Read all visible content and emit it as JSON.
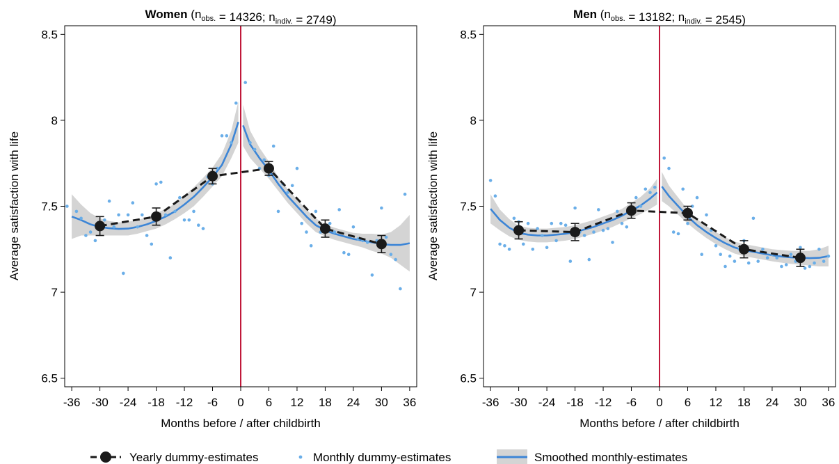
{
  "colors": {
    "yearly": "#1a1a1a",
    "monthly_dots": "#6aaee8",
    "smooth_line": "#3c85d6",
    "ci_band": "#d4d4d4",
    "vline": "#c0183a"
  },
  "legend": {
    "yearly_label": "Yearly dummy-estimates",
    "monthly_label": "Monthly dummy-estimates",
    "smooth_label": "Smoothed monthly-estimates"
  },
  "chart_data": [
    {
      "type": "line",
      "title": "Women",
      "subtitle_parts": [
        {
          "text": " (n",
          "sub": false
        },
        {
          "text": "obs.",
          "sub": true
        },
        {
          "text": " = 14326; n",
          "sub": false
        },
        {
          "text": "indiv.",
          "sub": true
        },
        {
          "text": " = 2749)",
          "sub": false
        }
      ],
      "xlabel": "Months before / after childbirth",
      "ylabel": "Average satisfaction with life",
      "xlim": [
        -37.5,
        37.5
      ],
      "ylim": [
        6.45,
        8.55
      ],
      "xticks": [
        -36,
        -30,
        -24,
        -18,
        -12,
        -6,
        0,
        6,
        12,
        18,
        24,
        30,
        36
      ],
      "xtick_labels": [
        "-36",
        "-30",
        "-24",
        "-18",
        "-12",
        "-6",
        "0",
        "6",
        "12",
        "18",
        "24",
        "30",
        "36"
      ],
      "yticks": [
        6.5,
        7,
        7.5,
        8,
        8.5
      ],
      "ytick_labels": [
        "6.5",
        "7",
        "7.5",
        "8",
        "8.5"
      ],
      "vline_x": 0,
      "yearly": {
        "name": "Yearly dummy-estimates",
        "x": [
          -30,
          -18,
          -6,
          6,
          18,
          30
        ],
        "y": [
          7.385,
          7.44,
          7.675,
          7.72,
          7.37,
          7.28
        ],
        "ci_low": [
          7.33,
          7.39,
          7.63,
          7.68,
          7.32,
          7.23
        ],
        "ci_high": [
          7.44,
          7.49,
          7.72,
          7.76,
          7.42,
          7.33
        ]
      },
      "monthly": {
        "name": "Monthly dummy-estimates",
        "x": [
          -37,
          -35,
          -34,
          -33,
          -32,
          -31,
          -30,
          -29,
          -28,
          -27,
          -26,
          -25,
          -24,
          -23,
          -22,
          -21,
          -20,
          -19,
          -18,
          -17,
          -16,
          -15,
          -14,
          -13,
          -12,
          -11,
          -10,
          -9,
          -8,
          -7,
          -6,
          -5,
          -4,
          -3,
          -2,
          -1,
          1,
          2,
          3,
          4,
          5,
          6,
          7,
          8,
          9,
          10,
          11,
          12,
          13,
          14,
          15,
          16,
          17,
          18,
          19,
          20,
          21,
          22,
          23,
          24,
          25,
          26,
          27,
          28,
          29,
          30,
          31,
          32,
          33,
          34,
          35
        ],
        "y": [
          7.5,
          7.47,
          7.43,
          7.33,
          7.35,
          7.3,
          7.4,
          7.42,
          7.53,
          7.38,
          7.45,
          7.11,
          7.45,
          7.52,
          7.38,
          7.45,
          7.33,
          7.28,
          7.63,
          7.64,
          7.45,
          7.2,
          7.47,
          7.55,
          7.42,
          7.42,
          7.47,
          7.39,
          7.37,
          7.67,
          7.63,
          7.72,
          7.91,
          7.91,
          7.87,
          8.1,
          8.22,
          7.87,
          7.83,
          7.72,
          7.77,
          7.68,
          7.85,
          7.47,
          7.63,
          7.58,
          7.62,
          7.72,
          7.4,
          7.35,
          7.27,
          7.47,
          7.35,
          7.38,
          7.4,
          7.35,
          7.48,
          7.23,
          7.22,
          7.38,
          7.31,
          7.3,
          7.29,
          7.1,
          7.3,
          7.49,
          7.32,
          7.22,
          7.19,
          7.02,
          7.57
        ]
      },
      "smoothed_pre": {
        "x": [
          -36,
          -34,
          -32,
          -30,
          -28,
          -26,
          -24,
          -22,
          -20,
          -18,
          -16,
          -14,
          -12,
          -10,
          -8,
          -6,
          -4,
          -2,
          -0.5
        ],
        "y": [
          7.44,
          7.42,
          7.395,
          7.38,
          7.372,
          7.368,
          7.37,
          7.38,
          7.395,
          7.415,
          7.44,
          7.47,
          7.51,
          7.555,
          7.61,
          7.67,
          7.74,
          7.86,
          7.99
        ],
        "lo": [
          7.31,
          7.33,
          7.33,
          7.33,
          7.33,
          7.33,
          7.33,
          7.34,
          7.355,
          7.37,
          7.395,
          7.425,
          7.46,
          7.5,
          7.555,
          7.615,
          7.675,
          7.78,
          7.87
        ],
        "hi": [
          7.57,
          7.51,
          7.46,
          7.43,
          7.414,
          7.406,
          7.41,
          7.42,
          7.435,
          7.46,
          7.485,
          7.515,
          7.56,
          7.61,
          7.665,
          7.725,
          7.805,
          7.94,
          8.11
        ]
      },
      "smoothed_post": {
        "x": [
          0.5,
          2,
          4,
          6,
          8,
          10,
          12,
          14,
          16,
          18,
          20,
          22,
          24,
          26,
          28,
          30,
          32,
          34,
          36
        ],
        "y": [
          7.97,
          7.86,
          7.78,
          7.71,
          7.63,
          7.56,
          7.5,
          7.44,
          7.39,
          7.36,
          7.34,
          7.325,
          7.31,
          7.3,
          7.29,
          7.28,
          7.275,
          7.275,
          7.285
        ],
        "lo": [
          7.85,
          7.78,
          7.72,
          7.66,
          7.59,
          7.52,
          7.46,
          7.4,
          7.35,
          7.325,
          7.305,
          7.29,
          7.275,
          7.26,
          7.24,
          7.225,
          7.2,
          7.16,
          7.12
        ],
        "hi": [
          8.09,
          7.94,
          7.84,
          7.76,
          7.67,
          7.6,
          7.54,
          7.48,
          7.43,
          7.395,
          7.375,
          7.36,
          7.345,
          7.34,
          7.34,
          7.335,
          7.35,
          7.39,
          7.45
        ]
      }
    },
    {
      "type": "line",
      "title": "Men",
      "subtitle_parts": [
        {
          "text": " (n",
          "sub": false
        },
        {
          "text": "obs.",
          "sub": true
        },
        {
          "text": " = 13182; n",
          "sub": false
        },
        {
          "text": "indiv.",
          "sub": true
        },
        {
          "text": " = 2545)",
          "sub": false
        }
      ],
      "xlabel": "Months before / after childbirth",
      "ylabel": "Average satisfaction with life",
      "xlim": [
        -37.5,
        37.5
      ],
      "ylim": [
        6.45,
        8.55
      ],
      "xticks": [
        -36,
        -30,
        -24,
        -18,
        -12,
        -6,
        0,
        6,
        12,
        18,
        24,
        30,
        36
      ],
      "xtick_labels": [
        "-36",
        "-30",
        "-24",
        "-18",
        "-12",
        "-6",
        "0",
        "6",
        "12",
        "18",
        "24",
        "30",
        "36"
      ],
      "yticks": [
        6.5,
        7,
        7.5,
        8,
        8.5
      ],
      "ytick_labels": [
        "6.5",
        "7",
        "7.5",
        "8",
        "8.5"
      ],
      "vline_x": 0,
      "yearly": {
        "name": "Yearly dummy-estimates",
        "x": [
          -30,
          -18,
          -6,
          6,
          18,
          30
        ],
        "y": [
          7.36,
          7.35,
          7.475,
          7.46,
          7.25,
          7.2
        ],
        "ci_low": [
          7.31,
          7.3,
          7.43,
          7.42,
          7.2,
          7.15
        ],
        "ci_high": [
          7.41,
          7.4,
          7.52,
          7.5,
          7.3,
          7.25
        ]
      },
      "monthly": {
        "name": "Monthly dummy-estimates",
        "x": [
          -36,
          -35,
          -34,
          -33,
          -32,
          -31,
          -30,
          -29,
          -28,
          -27,
          -26,
          -25,
          -24,
          -23,
          -22,
          -21,
          -20,
          -19,
          -18,
          -17,
          -16,
          -15,
          -14,
          -13,
          -12,
          -11,
          -10,
          -9,
          -8,
          -7,
          -6,
          -5,
          -4,
          -3,
          -2,
          -1,
          1,
          2,
          3,
          4,
          5,
          6,
          7,
          8,
          9,
          10,
          11,
          12,
          13,
          14,
          15,
          16,
          17,
          18,
          19,
          20,
          21,
          22,
          23,
          24,
          25,
          26,
          27,
          28,
          29,
          30,
          31,
          32,
          33,
          34,
          35,
          36
        ],
        "y": [
          7.65,
          7.56,
          7.28,
          7.27,
          7.25,
          7.43,
          7.41,
          7.28,
          7.4,
          7.25,
          7.37,
          7.33,
          7.26,
          7.4,
          7.3,
          7.4,
          7.39,
          7.18,
          7.49,
          7.35,
          7.33,
          7.19,
          7.35,
          7.48,
          7.36,
          7.37,
          7.29,
          7.47,
          7.4,
          7.38,
          7.48,
          7.55,
          7.5,
          7.6,
          7.58,
          7.61,
          7.78,
          7.72,
          7.35,
          7.34,
          7.6,
          7.4,
          7.5,
          7.55,
          7.22,
          7.45,
          7.36,
          7.27,
          7.22,
          7.15,
          7.21,
          7.18,
          7.25,
          7.3,
          7.17,
          7.43,
          7.18,
          7.25,
          7.2,
          7.22,
          7.2,
          7.15,
          7.16,
          7.22,
          7.18,
          7.26,
          7.14,
          7.15,
          7.17,
          7.25,
          7.18,
          7.21
        ]
      },
      "smoothed_pre": {
        "x": [
          -36,
          -34,
          -32,
          -30,
          -28,
          -26,
          -24,
          -22,
          -20,
          -18,
          -16,
          -14,
          -12,
          -10,
          -8,
          -6,
          -4,
          -2,
          -0.5
        ],
        "y": [
          7.485,
          7.42,
          7.375,
          7.345,
          7.335,
          7.33,
          7.33,
          7.335,
          7.34,
          7.35,
          7.365,
          7.38,
          7.4,
          7.42,
          7.445,
          7.475,
          7.505,
          7.545,
          7.58
        ],
        "lo": [
          7.4,
          7.36,
          7.325,
          7.305,
          7.295,
          7.29,
          7.29,
          7.295,
          7.3,
          7.31,
          7.325,
          7.34,
          7.36,
          7.38,
          7.405,
          7.43,
          7.455,
          7.485,
          7.51
        ],
        "hi": [
          7.57,
          7.48,
          7.425,
          7.385,
          7.375,
          7.37,
          7.37,
          7.375,
          7.38,
          7.39,
          7.405,
          7.42,
          7.44,
          7.46,
          7.485,
          7.52,
          7.555,
          7.605,
          7.66
        ]
      },
      "smoothed_post": {
        "x": [
          0.5,
          2,
          4,
          6,
          8,
          10,
          12,
          14,
          16,
          18,
          20,
          22,
          24,
          26,
          28,
          30,
          32,
          34,
          36
        ],
        "y": [
          7.615,
          7.56,
          7.5,
          7.44,
          7.39,
          7.35,
          7.315,
          7.285,
          7.26,
          7.245,
          7.235,
          7.225,
          7.215,
          7.208,
          7.203,
          7.2,
          7.198,
          7.2,
          7.21
        ],
        "lo": [
          7.53,
          7.5,
          7.45,
          7.4,
          7.355,
          7.315,
          7.28,
          7.25,
          7.225,
          7.21,
          7.2,
          7.19,
          7.18,
          7.172,
          7.165,
          7.16,
          7.155,
          7.15,
          7.15
        ],
        "hi": [
          7.7,
          7.62,
          7.55,
          7.48,
          7.425,
          7.385,
          7.35,
          7.32,
          7.295,
          7.28,
          7.27,
          7.26,
          7.25,
          7.245,
          7.241,
          7.24,
          7.241,
          7.25,
          7.27
        ]
      }
    }
  ]
}
